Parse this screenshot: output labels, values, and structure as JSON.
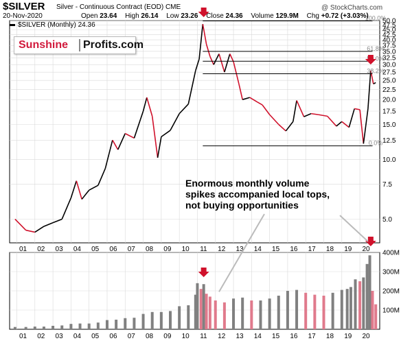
{
  "header": {
    "symbol": "$SILVER",
    "description": "Silver - Continuous Contract (EOD)",
    "exchange": "CME",
    "watermark": "@ StockCharts.com",
    "date": "20-Nov-2020",
    "open_label": "Open",
    "open": "23.64",
    "high_label": "High",
    "high": "26.14",
    "low_label": "Low",
    "low": "23.26",
    "close_label": "Close",
    "close": "24.36",
    "volume_label": "Volume",
    "volume": "129.9M",
    "chg_label": "Chg",
    "chg": "+0.72 (+3.03%)",
    "legend": "$SILVER (Monthly) 24.36"
  },
  "logo": {
    "part1": "Sunshine",
    "part2": "Profits.com"
  },
  "annotation": "Enormous monthly volume\nspikes accompanied local tops,\nnot buying opportunities",
  "colors": {
    "up": "#000000",
    "down": "#d0112b",
    "arrow": "#d0112b",
    "vol_up": "#808080",
    "vol_down": "#e07a8c",
    "grid": "#d9d9d9"
  },
  "chart_data": [
    {
      "type": "line",
      "scale": "log",
      "ylim": [
        3.8,
        50
      ],
      "ticks": [
        "5.0",
        "7.5",
        "10.0",
        "12.5",
        "15.0",
        "17.5",
        "20.0",
        "22.5",
        "25.0",
        "27.5",
        "30.0",
        "32.5",
        "35.0",
        "37.5",
        "40.0",
        "42.5",
        "45.0",
        "47.5",
        "50.0"
      ],
      "xticks": [
        "01",
        "02",
        "03",
        "04",
        "05",
        "06",
        "07",
        "08",
        "09",
        "10",
        "11",
        "12",
        "13",
        "14",
        "15",
        "16",
        "17",
        "18",
        "19",
        "20"
      ],
      "x": [
        2000.9,
        2001.5,
        2002.0,
        2002.5,
        2003.0,
        2003.5,
        2004.0,
        2004.3,
        2004.6,
        2005.0,
        2005.5,
        2005.9,
        2006.3,
        2006.6,
        2007.0,
        2007.5,
        2008.0,
        2008.2,
        2008.5,
        2008.8,
        2009.0,
        2009.5,
        2010.0,
        2010.5,
        2010.9,
        2011.1,
        2011.3,
        2011.5,
        2011.7,
        2011.9,
        2012.2,
        2012.5,
        2012.8,
        2013.0,
        2013.3,
        2013.5,
        2013.9,
        2014.3,
        2014.6,
        2015.0,
        2015.5,
        2015.9,
        2016.3,
        2016.5,
        2016.9,
        2017.3,
        2017.7,
        2018.2,
        2018.7,
        2019.0,
        2019.4,
        2019.7,
        2020.0,
        2020.2,
        2020.45,
        2020.6,
        2020.75,
        2020.88
      ],
      "values": [
        5.0,
        4.4,
        4.3,
        4.6,
        4.8,
        5.0,
        6.4,
        7.8,
        6.3,
        7.0,
        7.4,
        9.0,
        12.5,
        11.2,
        13.5,
        12.8,
        17.5,
        20.5,
        16.5,
        10.2,
        13.0,
        14.0,
        17.0,
        19.0,
        28.0,
        32.0,
        48.0,
        38.0,
        33.0,
        30.0,
        34.0,
        27.5,
        34.0,
        31.0,
        24.0,
        20.0,
        20.5,
        19.5,
        18.8,
        16.8,
        15.0,
        13.9,
        15.5,
        19.8,
        16.4,
        17.0,
        16.8,
        16.5,
        14.7,
        15.5,
        14.5,
        18.0,
        17.8,
        12.0,
        18.0,
        28.0,
        24.0,
        24.36
      ],
      "levels": [
        {
          "label": "100.0%",
          "value": 49.8
        },
        {
          "label": "61.8%",
          "value": 35.0
        },
        {
          "label": "50.0%",
          "value": 31.2
        },
        {
          "label": "38.2%",
          "value": 27.0
        },
        {
          "label": "0.0%",
          "value": 11.7
        }
      ]
    },
    {
      "type": "bar",
      "ylim": [
        0,
        400
      ],
      "ticks": [
        "100M",
        "200M",
        "300M",
        "400M"
      ],
      "x": [
        2000.9,
        2001.5,
        2002.0,
        2002.5,
        2003.0,
        2003.5,
        2004.0,
        2004.5,
        2005.0,
        2005.5,
        2006.0,
        2006.5,
        2007.0,
        2007.5,
        2008.0,
        2008.5,
        2009.0,
        2009.5,
        2010.0,
        2010.5,
        2010.9,
        2011.0,
        2011.2,
        2011.35,
        2011.5,
        2011.7,
        2012.0,
        2012.5,
        2013.0,
        2013.5,
        2014.0,
        2014.5,
        2015.0,
        2015.5,
        2016.0,
        2016.5,
        2017.0,
        2017.5,
        2018.0,
        2018.5,
        2019.0,
        2019.3,
        2019.5,
        2019.75,
        2020.0,
        2020.2,
        2020.4,
        2020.55,
        2020.7,
        2020.88
      ],
      "values": [
        12,
        12,
        14,
        14,
        18,
        20,
        28,
        30,
        30,
        35,
        48,
        50,
        58,
        60,
        80,
        90,
        90,
        95,
        120,
        125,
        180,
        240,
        210,
        235,
        185,
        170,
        150,
        140,
        160,
        165,
        150,
        150,
        160,
        175,
        200,
        205,
        190,
        180,
        175,
        190,
        205,
        210,
        220,
        260,
        250,
        270,
        340,
        385,
        200,
        130
      ]
    }
  ]
}
